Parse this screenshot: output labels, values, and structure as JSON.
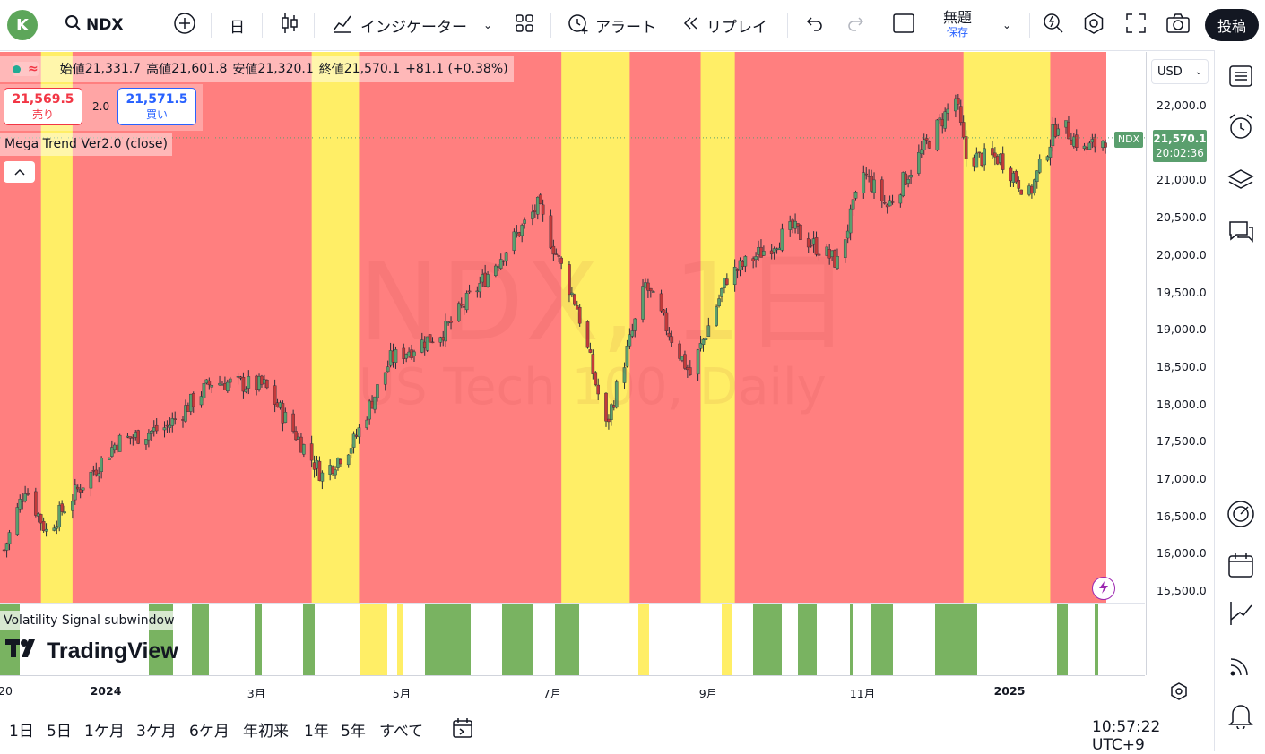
{
  "topbar": {
    "avatar_letter": "K",
    "symbol": "NDX",
    "interval": "日",
    "indicators": "インジケーター",
    "alert": "アラート",
    "replay": "リプレイ",
    "layout_name": "無題",
    "save_label": "保存",
    "post_button": "投稿"
  },
  "legend": {
    "open_label": "始値",
    "open": "21,331.7",
    "high_label": "高値",
    "high": "21,601.8",
    "low_label": "安値",
    "low": "21,320.1",
    "close_label": "終値",
    "close": "21,570.1",
    "change": "+81.1 (+0.38%)"
  },
  "quote": {
    "sell_price": "21,569.5",
    "sell_label": "売り",
    "spread": "2.0",
    "buy_price": "21,571.5",
    "buy_label": "買い"
  },
  "indicator": {
    "name": "Mega Trend Ver2.0 (close)",
    "subwindow_name": "Volatility Signal subwindow"
  },
  "watermark": {
    "line1": "NDX, 1日",
    "line2": "US Tech 100, Daily"
  },
  "branding": {
    "logo_text": "TradingView"
  },
  "price_axis": {
    "currency": "USD",
    "ticks": [
      "22,000.0",
      "21,500.0",
      "21,000.0",
      "20,500.0",
      "20,000.0",
      "19,500.0",
      "19,000.0",
      "18,500.0",
      "18,000.0",
      "17,500.0",
      "17,000.0",
      "16,500.0",
      "16,000.0",
      "15,500.0"
    ],
    "last_symbol": "NDX",
    "last_price": "21,570.1",
    "countdown": "20:02:36"
  },
  "time_axis": {
    "ticks": [
      "20",
      "2024",
      "3月",
      "5月",
      "7月",
      "9月",
      "11月",
      "2025"
    ]
  },
  "bottombar": {
    "ranges": [
      "1日",
      "5日",
      "1ケ月",
      "3ケ月",
      "6ケ月",
      "年初来",
      "1年",
      "5年",
      "すべて"
    ],
    "clock": "10:57:22 UTC+9"
  },
  "colors": {
    "bear_zone": "#ff7f7f",
    "caution_zone": "#ffee66",
    "signal_green": "#79b361",
    "signal_yellow": "#ffee66",
    "candle_up": "#5a9f6e",
    "candle_down": "#c23a3a"
  },
  "chart_data": {
    "type": "candlestick",
    "symbol": "NDX",
    "interval": "1日",
    "ylim": [
      15300,
      22400
    ],
    "y_ticks": [
      15500,
      16000,
      16500,
      17000,
      17500,
      18000,
      18500,
      19000,
      19500,
      20000,
      20500,
      21000,
      21500,
      22000
    ],
    "x_ticks": [
      "20",
      "2024",
      "3月",
      "5月",
      "7月",
      "9月",
      "11月",
      "2025"
    ],
    "close_path": [
      {
        "d": "2023-12-20",
        "v": 16050
      },
      {
        "d": "2023-12-28",
        "v": 16900
      },
      {
        "d": "2024-01-05",
        "v": 16300
      },
      {
        "d": "2024-01-18",
        "v": 16900
      },
      {
        "d": "2024-02-01",
        "v": 17500
      },
      {
        "d": "2024-02-20",
        "v": 17700
      },
      {
        "d": "2024-03-08",
        "v": 18300
      },
      {
        "d": "2024-03-28",
        "v": 18250
      },
      {
        "d": "2024-04-19",
        "v": 17050
      },
      {
        "d": "2024-05-01",
        "v": 17500
      },
      {
        "d": "2024-05-15",
        "v": 18600
      },
      {
        "d": "2024-06-05",
        "v": 19000
      },
      {
        "d": "2024-06-20",
        "v": 19700
      },
      {
        "d": "2024-07-10",
        "v": 20650
      },
      {
        "d": "2024-07-25",
        "v": 19300
      },
      {
        "d": "2024-08-05",
        "v": 17700
      },
      {
        "d": "2024-08-20",
        "v": 19600
      },
      {
        "d": "2024-09-06",
        "v": 18400
      },
      {
        "d": "2024-09-20",
        "v": 19700
      },
      {
        "d": "2024-10-15",
        "v": 20350
      },
      {
        "d": "2024-11-01",
        "v": 19900
      },
      {
        "d": "2024-11-11",
        "v": 21100
      },
      {
        "d": "2024-11-20",
        "v": 20650
      },
      {
        "d": "2024-12-16",
        "v": 22100
      },
      {
        "d": "2024-12-20",
        "v": 21300
      },
      {
        "d": "2025-01-02",
        "v": 21300
      },
      {
        "d": "2025-01-13",
        "v": 20800
      },
      {
        "d": "2025-01-24",
        "v": 21800
      },
      {
        "d": "2025-02-03",
        "v": 21400
      },
      {
        "d": "2025-02-11",
        "v": 21570
      }
    ],
    "caution_zones": [
      [
        "2024-01-03",
        "2024-01-15"
      ],
      [
        "2024-04-15",
        "2024-05-03"
      ],
      [
        "2024-07-19",
        "2024-08-14"
      ],
      [
        "2024-09-10",
        "2024-09-23"
      ],
      [
        "2024-12-19",
        "2025-01-21"
      ]
    ]
  }
}
